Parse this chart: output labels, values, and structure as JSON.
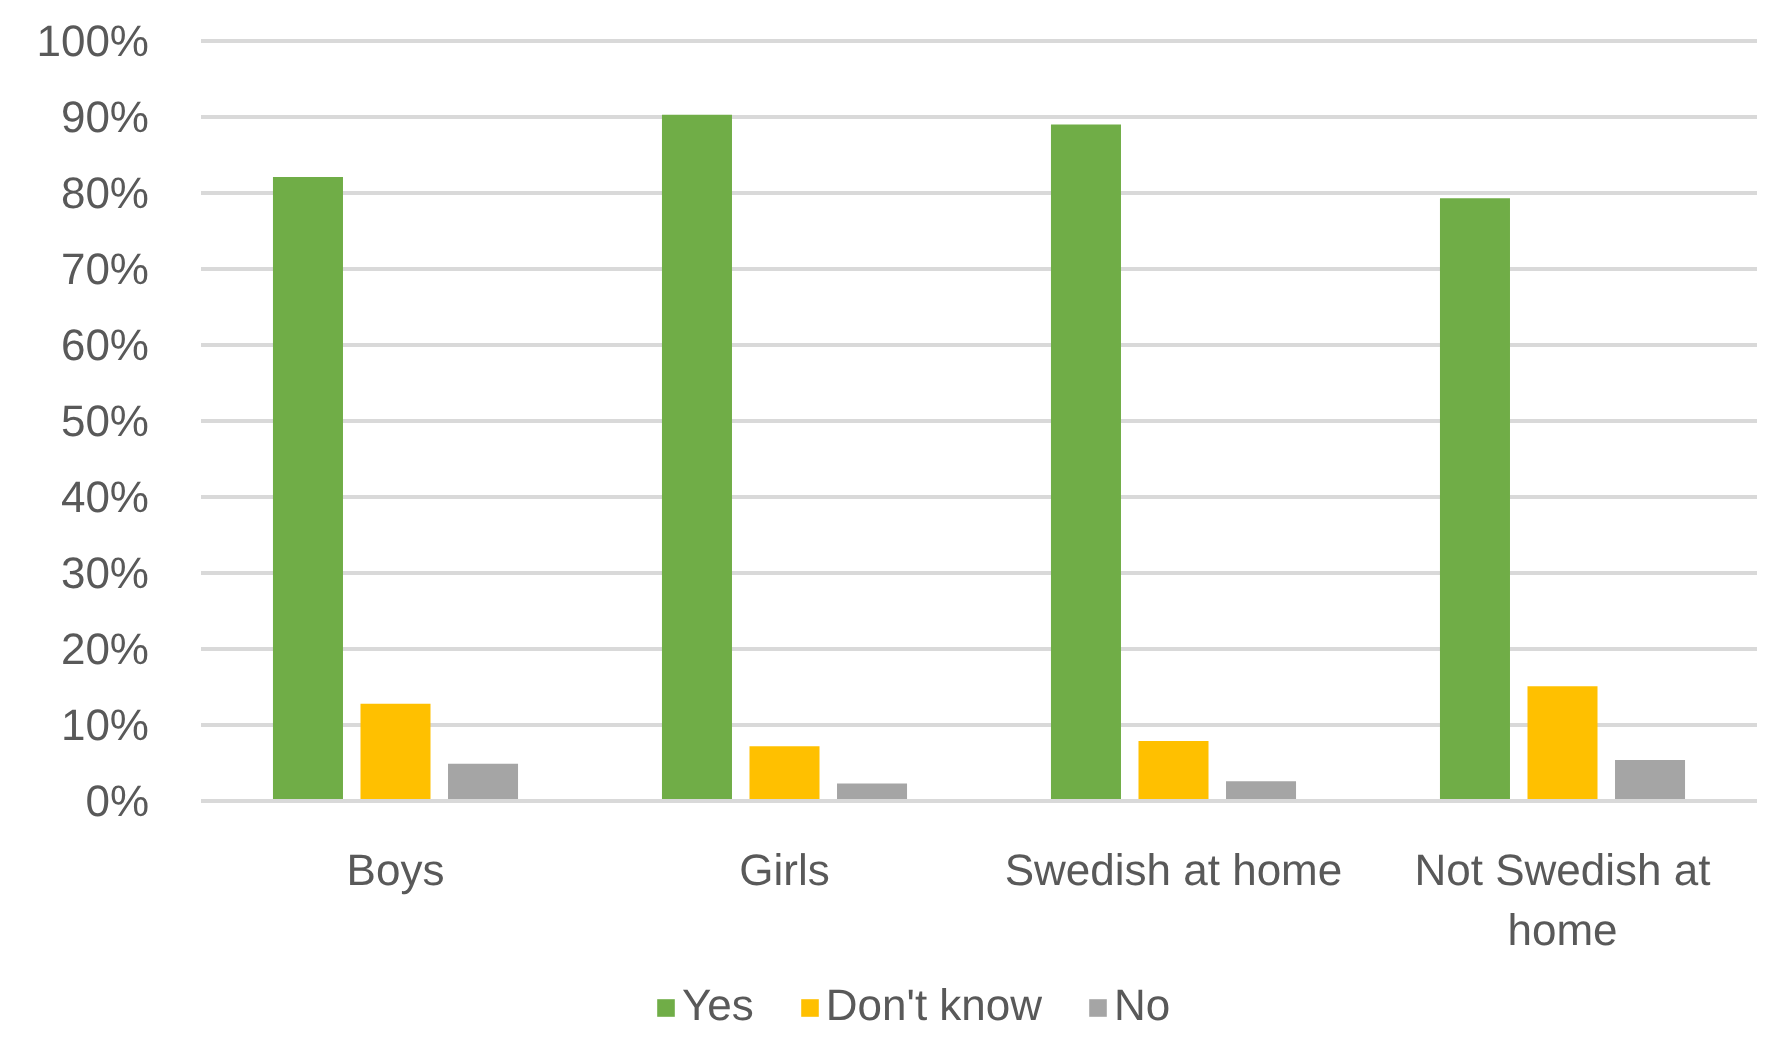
{
  "chart_data": {
    "type": "bar",
    "categories": [
      "Boys",
      "Girls",
      "Swedish at home",
      "Not Swedish at home"
    ],
    "series": [
      {
        "name": "Yes",
        "color": "#70ad47",
        "values": [
          82.1,
          90.3,
          89.0,
          79.3
        ]
      },
      {
        "name": "Don't know",
        "color": "#ffc000",
        "values": [
          12.8,
          7.2,
          7.9,
          15.1
        ]
      },
      {
        "name": "No",
        "color": "#a5a5a5",
        "values": [
          4.9,
          2.3,
          2.6,
          5.4
        ]
      }
    ],
    "ylim": [
      0,
      100
    ],
    "yticks": [
      {
        "value": 0,
        "label": "0%"
      },
      {
        "value": 10,
        "label": "10%"
      },
      {
        "value": 20,
        "label": "20%"
      },
      {
        "value": 30,
        "label": "30%"
      },
      {
        "value": 40,
        "label": "40%"
      },
      {
        "value": 50,
        "label": "50%"
      },
      {
        "value": 60,
        "label": "60%"
      },
      {
        "value": 70,
        "label": "70%"
      },
      {
        "value": 80,
        "label": "80%"
      },
      {
        "value": 90,
        "label": "90%"
      },
      {
        "value": 100,
        "label": "100%"
      }
    ],
    "grid": "y",
    "legend": "bottom"
  }
}
